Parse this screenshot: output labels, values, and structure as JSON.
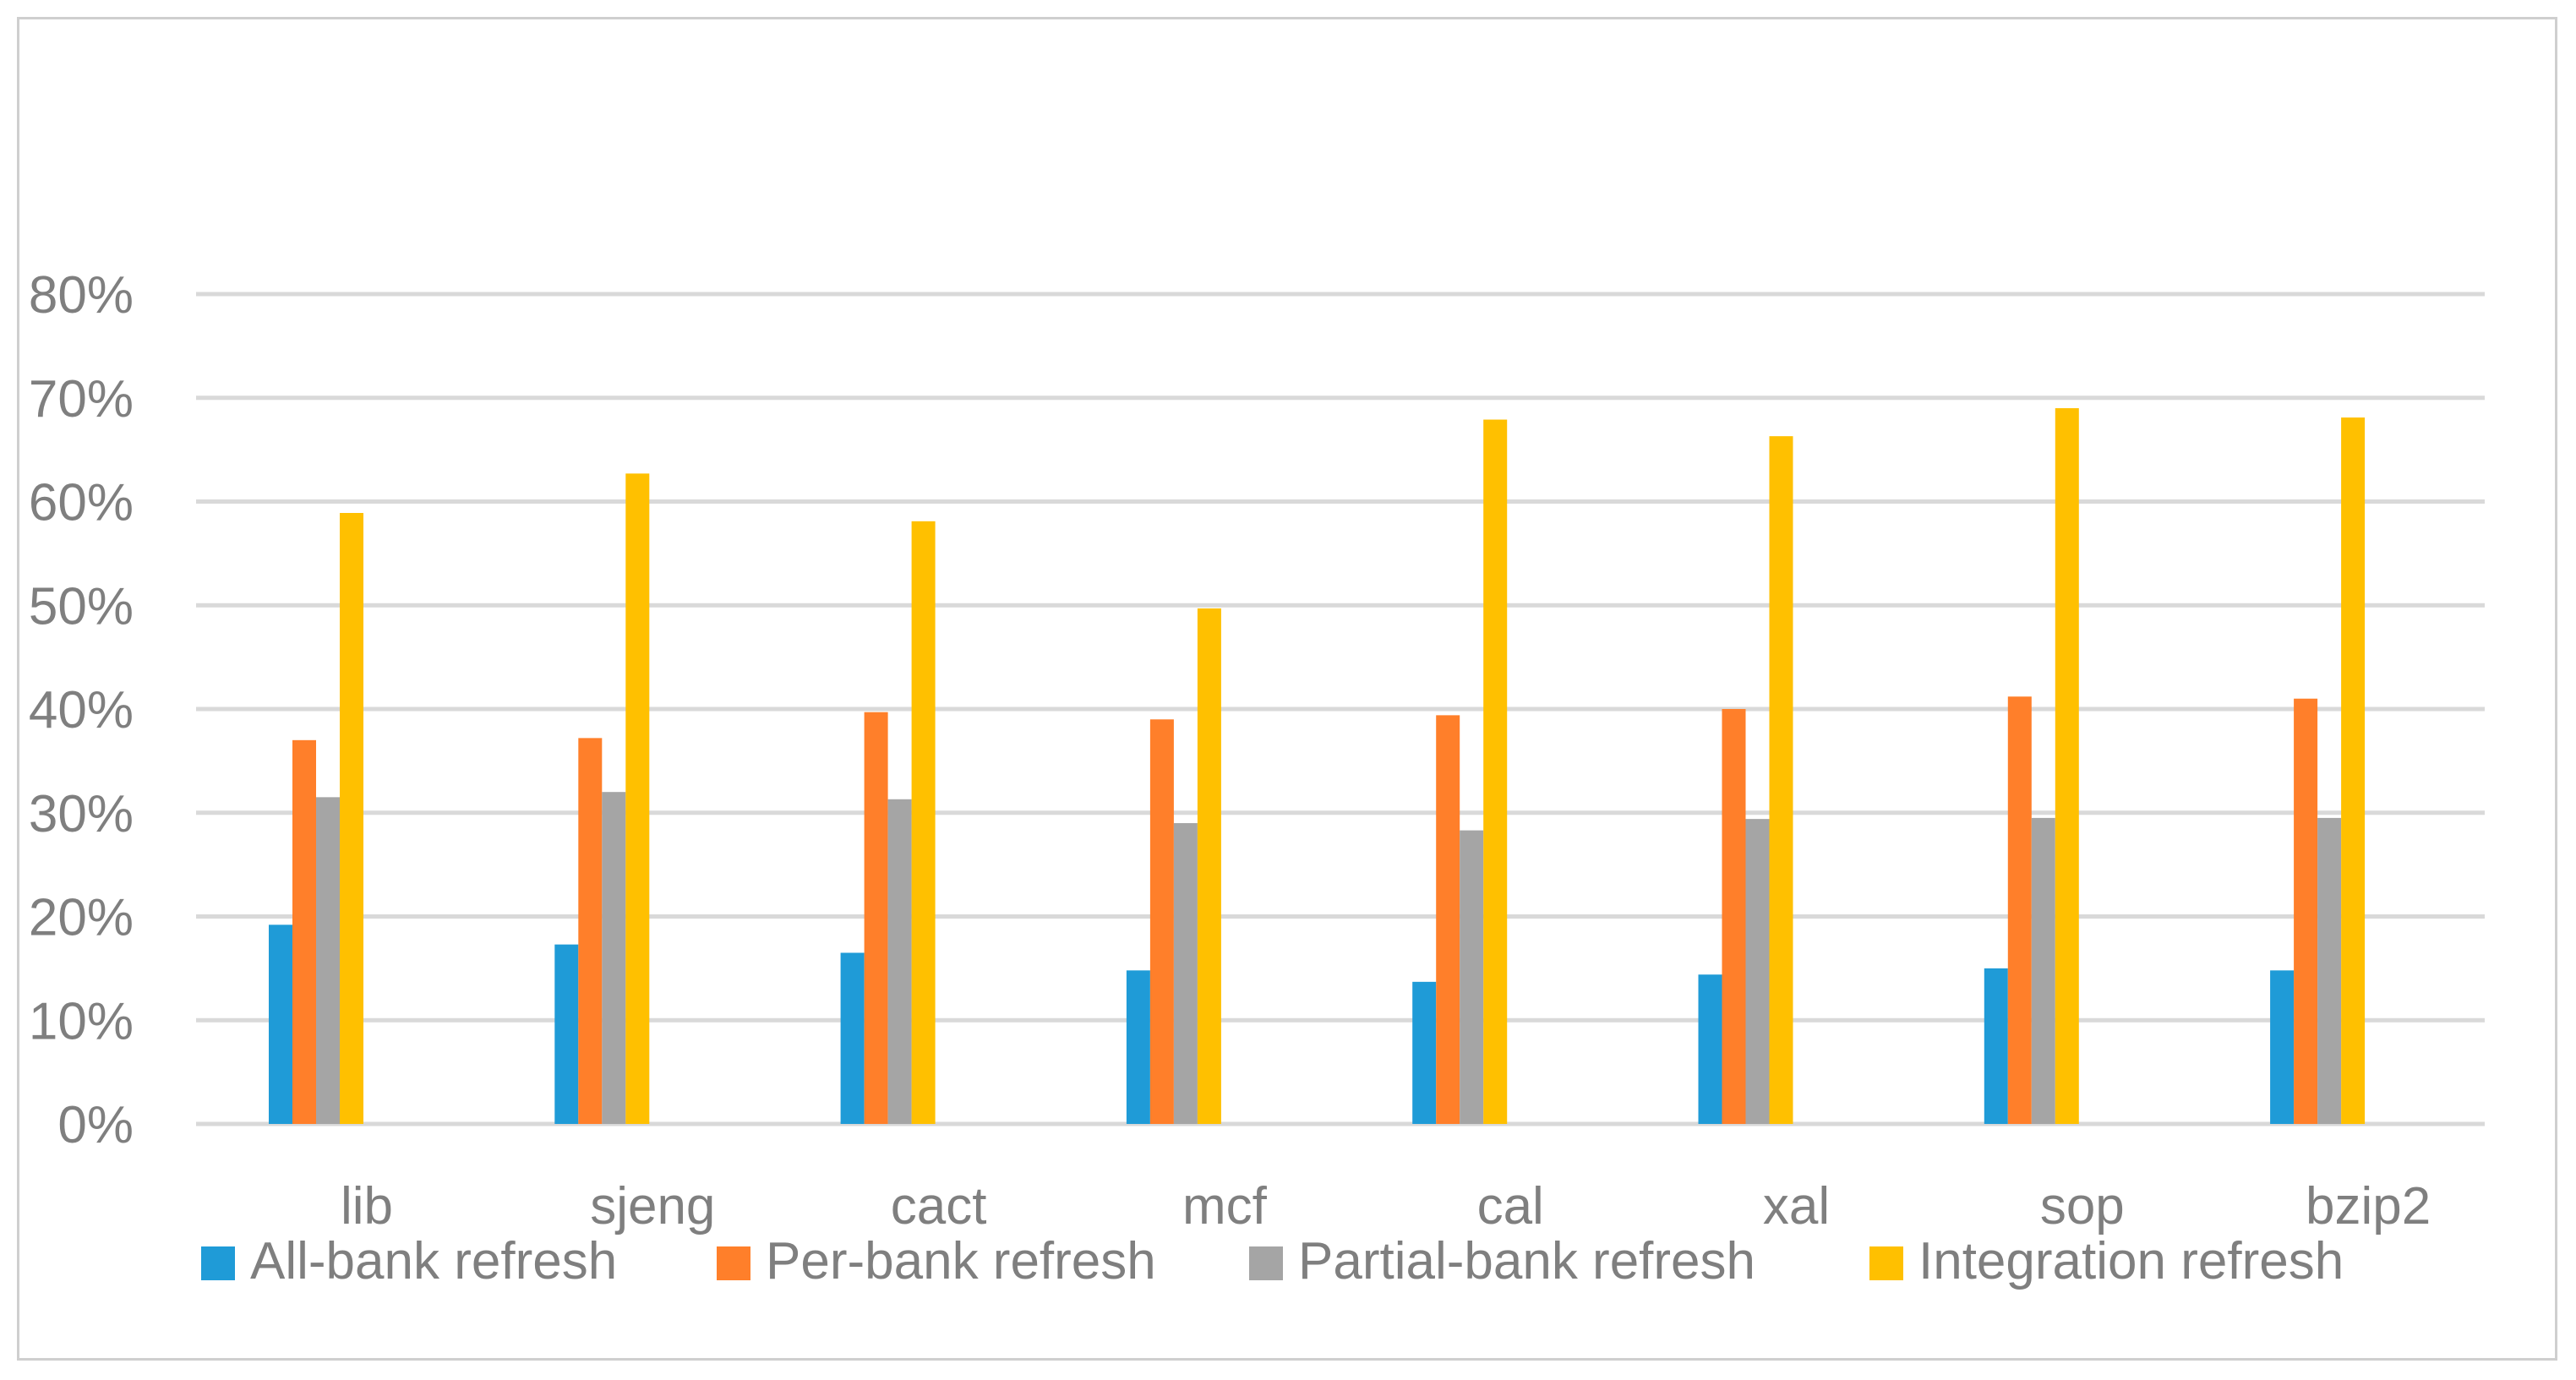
{
  "chart_data": {
    "type": "bar",
    "title": "",
    "xlabel": "",
    "ylabel": "",
    "ylim": [
      0,
      80
    ],
    "y_ticks": [
      0,
      10,
      20,
      30,
      40,
      50,
      60,
      70,
      80
    ],
    "y_tick_suffix": "%",
    "grid": true,
    "legend_position": "bottom",
    "categories": [
      "lib",
      "sjeng",
      "cact",
      "mcf",
      "cal",
      "xal",
      "sop",
      "bzip2"
    ],
    "series": [
      {
        "name": "All-bank refresh",
        "color": "#1f9bd7",
        "values": [
          19.2,
          17.3,
          16.5,
          14.8,
          13.7,
          14.4,
          15.0,
          14.8
        ]
      },
      {
        "name": "Per-bank refresh",
        "color": "#ff7f2a",
        "values": [
          37.0,
          37.2,
          39.7,
          39.0,
          39.4,
          40.0,
          41.2,
          41.0
        ]
      },
      {
        "name": "Partial-bank refresh",
        "color": "#a5a5a5",
        "values": [
          31.5,
          32.0,
          31.3,
          29.0,
          28.3,
          29.4,
          29.5,
          29.5
        ]
      },
      {
        "name": "Integration refresh",
        "color": "#ffc000",
        "values": [
          58.9,
          62.7,
          58.1,
          49.7,
          67.9,
          66.3,
          69.0,
          68.1
        ]
      }
    ]
  }
}
